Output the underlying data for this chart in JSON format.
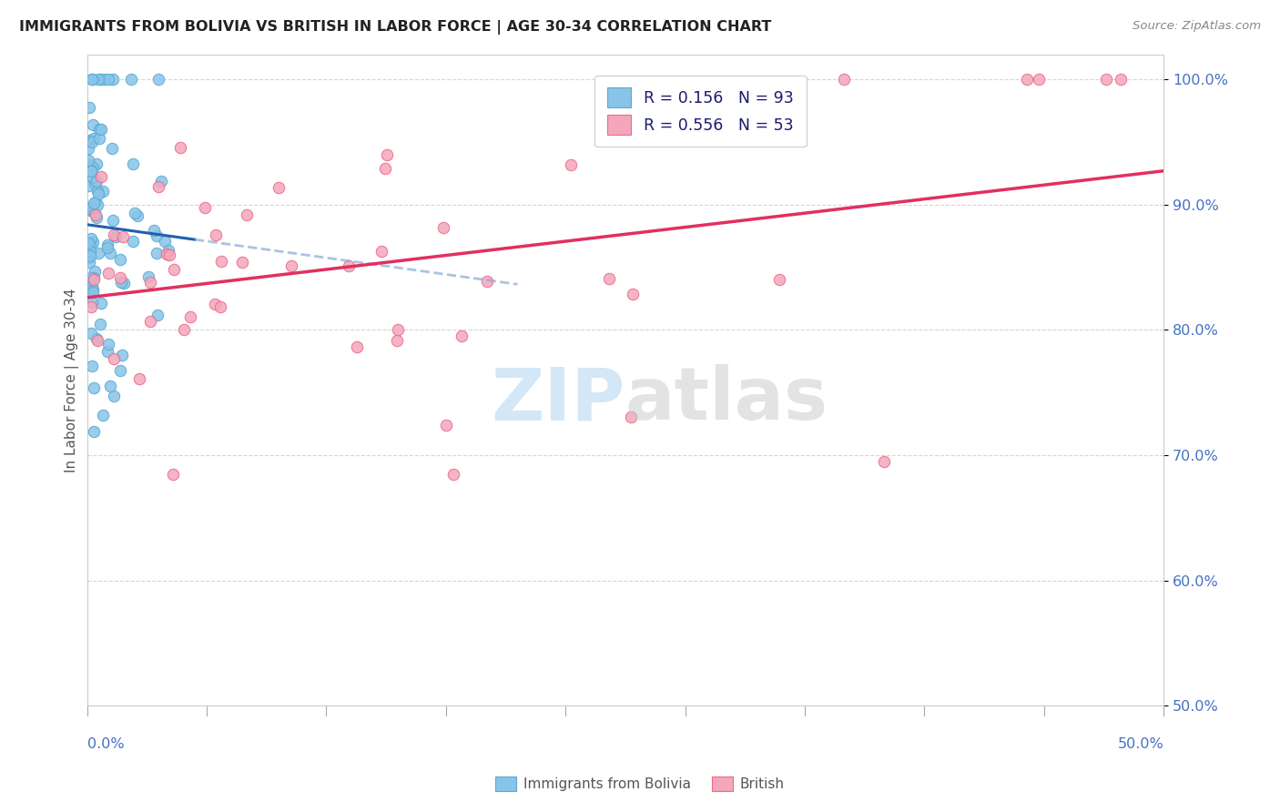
{
  "title": "IMMIGRANTS FROM BOLIVIA VS BRITISH IN LABOR FORCE | AGE 30-34 CORRELATION CHART",
  "source": "Source: ZipAtlas.com",
  "ylabel": "In Labor Force | Age 30-34",
  "xmin": 0.0,
  "xmax": 0.5,
  "ymin": 0.5,
  "ymax": 1.02,
  "yticks": [
    0.5,
    0.6,
    0.7,
    0.8,
    0.9,
    1.0
  ],
  "ytick_labels": [
    "50.0%",
    "60.0%",
    "70.0%",
    "80.0%",
    "90.0%",
    "100.0%"
  ],
  "bolivia_color": "#89c4e8",
  "british_color": "#f4a7bb",
  "bolivia_edge": "#5aaad4",
  "british_edge": "#ee6a8a",
  "trend_bolivia_color": "#2060b0",
  "trend_british_color": "#e03060",
  "watermark_zip_color": "#b8d8f0",
  "watermark_atlas_color": "#c8c8c8",
  "bolivia_R": 0.156,
  "bolivia_N": 93,
  "british_R": 0.556,
  "british_N": 53
}
